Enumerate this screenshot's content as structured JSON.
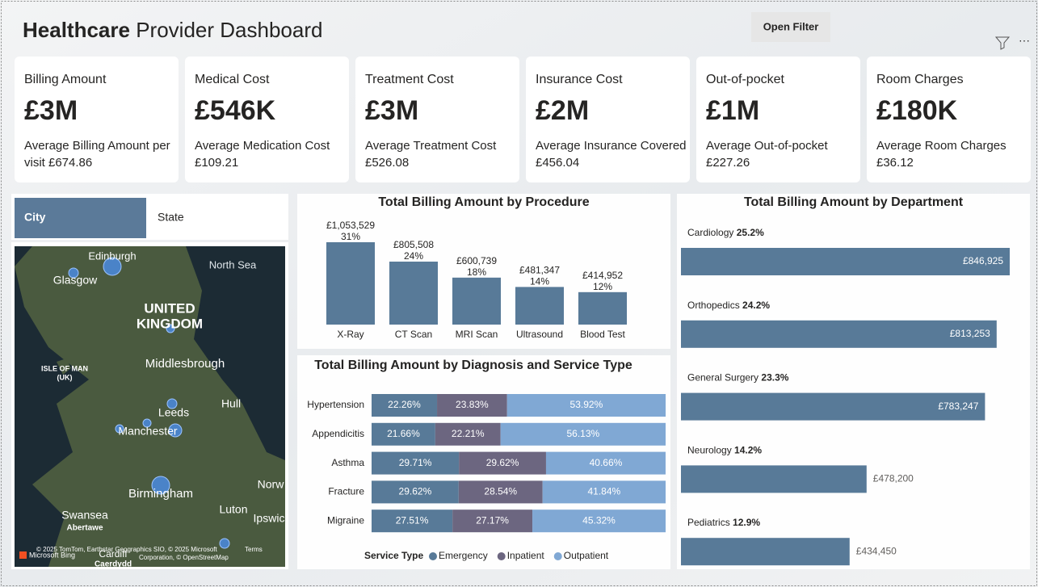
{
  "header": {
    "title_bold": "Healthcare",
    "title_rest": "Provider Dashboard",
    "filter_button": "Open Filter"
  },
  "cards": [
    {
      "label": "Billing Amount",
      "value": "£3M",
      "caption": [
        "Average Billing Amount per",
        "visit £674.86"
      ]
    },
    {
      "label": "Medical Cost",
      "value": "£546K",
      "caption": [
        "Average Medication Cost",
        "£109.21"
      ]
    },
    {
      "label": "Treatment Cost",
      "value": "£3M",
      "caption": [
        "Average Treatment Cost",
        "£526.08"
      ]
    },
    {
      "label": "Insurance Cost",
      "value": "£2M",
      "caption": [
        "Average Insurance Covered",
        "£456.04"
      ]
    },
    {
      "label": "Out-of-pocket",
      "value": "£1M",
      "caption": [
        "Average Out-of-pocket",
        "£227.26"
      ]
    },
    {
      "label": "Room Charges",
      "value": "£180K",
      "caption": [
        "Average Room Charges",
        "£36.12"
      ]
    }
  ],
  "slicer": {
    "options": [
      "City",
      "State"
    ]
  },
  "map": {
    "labels": [
      "Edinburgh",
      "Glasgow",
      "North Sea",
      "UNITED",
      "KINGDOM",
      "ISLE OF MAN",
      "(UK)",
      "Middlesbrough",
      "Hull",
      "Leeds",
      "Manchester",
      "Birmingham",
      "Norw",
      "Swansea",
      "Luton",
      "Ipswic",
      "Abertawe",
      "Cardiff",
      "Caerdydd"
    ],
    "attribution": [
      "© 2025 TomTom, Earthstar Geographics SIO, © 2025 Microsoft",
      "Corporation, © OpenStreetMap",
      "Terms"
    ],
    "brand": "Microsoft Bing"
  },
  "chart_data": [
    {
      "type": "bar",
      "title": "Total Billing Amount by Procedure",
      "color": "#587a98",
      "categories": [
        "X-Ray",
        "CT Scan",
        "MRI Scan",
        "Ultrasound",
        "Blood Test"
      ],
      "values": [
        1053529,
        805508,
        600739,
        481347,
        414952
      ],
      "value_labels": [
        "£1,053,529",
        "£805,508",
        "£600,739",
        "£481,347",
        "£414,952"
      ],
      "shares": [
        31,
        24,
        18,
        14,
        12
      ],
      "share_labels": [
        "31%",
        "24%",
        "18%",
        "14%",
        "12%"
      ]
    },
    {
      "type": "stacked_bar",
      "title": "Total Billing Amount by Diagnosis and Service Type",
      "categories": [
        "Hypertension",
        "Appendicitis",
        "Asthma",
        "Fracture",
        "Migraine"
      ],
      "xlim": [
        0,
        100
      ],
      "legend_title": "Service Type",
      "series": [
        {
          "name": "Emergency",
          "color": "#587a98",
          "values": [
            22.26,
            21.66,
            29.71,
            29.62,
            27.51
          ],
          "value_labels": [
            "22.26%",
            "21.66%",
            "29.71%",
            "29.62%",
            "27.51%"
          ]
        },
        {
          "name": "Inpatient",
          "color": "#6c6680",
          "values": [
            23.83,
            22.21,
            29.62,
            28.54,
            27.17
          ],
          "value_labels": [
            "23.83%",
            "22.21%",
            "29.62%",
            "28.54%",
            "27.17%"
          ]
        },
        {
          "name": "Outpatient",
          "color": "#80a8d4",
          "values": [
            53.92,
            56.13,
            40.66,
            41.84,
            45.32
          ],
          "value_labels": [
            "53.92%",
            "56.13%",
            "40.66%",
            "41.84%",
            "45.32%"
          ]
        }
      ]
    },
    {
      "type": "hbar",
      "title": "Total Billing Amount by Department",
      "color": "#587a98",
      "categories": [
        "Cardiology",
        "Orthopedics",
        "General Surgery",
        "Neurology",
        "Pediatrics"
      ],
      "values": [
        846925,
        813253,
        783247,
        478200,
        434450
      ],
      "value_labels": [
        "£846,925",
        "£813,253",
        "£783,247",
        "£478,200",
        "£434,450"
      ],
      "shares": [
        25.2,
        24.2,
        23.3,
        14.2,
        12.9
      ],
      "share_labels": [
        "25.2%",
        "24.2%",
        "23.3%",
        "14.2%",
        "12.9%"
      ]
    }
  ]
}
